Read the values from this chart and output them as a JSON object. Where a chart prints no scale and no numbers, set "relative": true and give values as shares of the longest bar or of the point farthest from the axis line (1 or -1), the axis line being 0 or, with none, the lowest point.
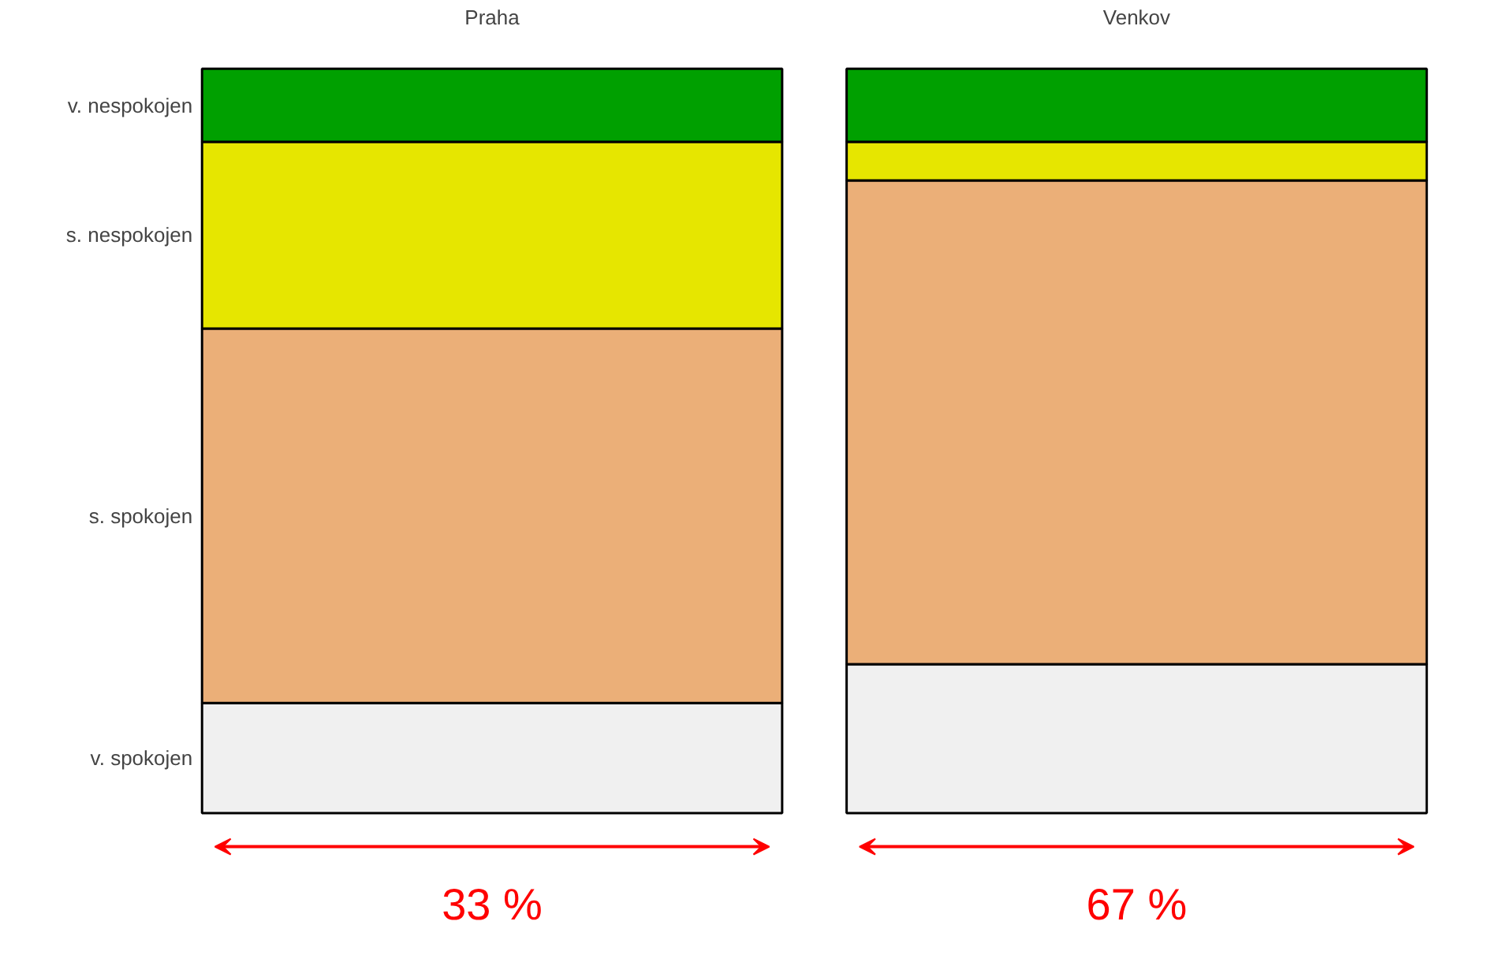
{
  "chart_data": {
    "type": "bar",
    "stacked": true,
    "relative": true,
    "categories": [
      "Praha",
      "Venkov"
    ],
    "series": [
      {
        "name": "v. spokojen",
        "color": "#f0f0f0",
        "values": [
          0.148,
          0.2
        ]
      },
      {
        "name": "s. spokojen",
        "color": "#ebaf78",
        "values": [
          0.503,
          0.65
        ]
      },
      {
        "name": "s. nespokojen",
        "color": "#e6e600",
        "values": [
          0.251,
          0.052
        ]
      },
      {
        "name": "v. nespokojen",
        "color": "#00a000",
        "values": [
          0.098,
          0.098
        ]
      }
    ],
    "annotations": [
      "33 %",
      "67 %"
    ]
  }
}
